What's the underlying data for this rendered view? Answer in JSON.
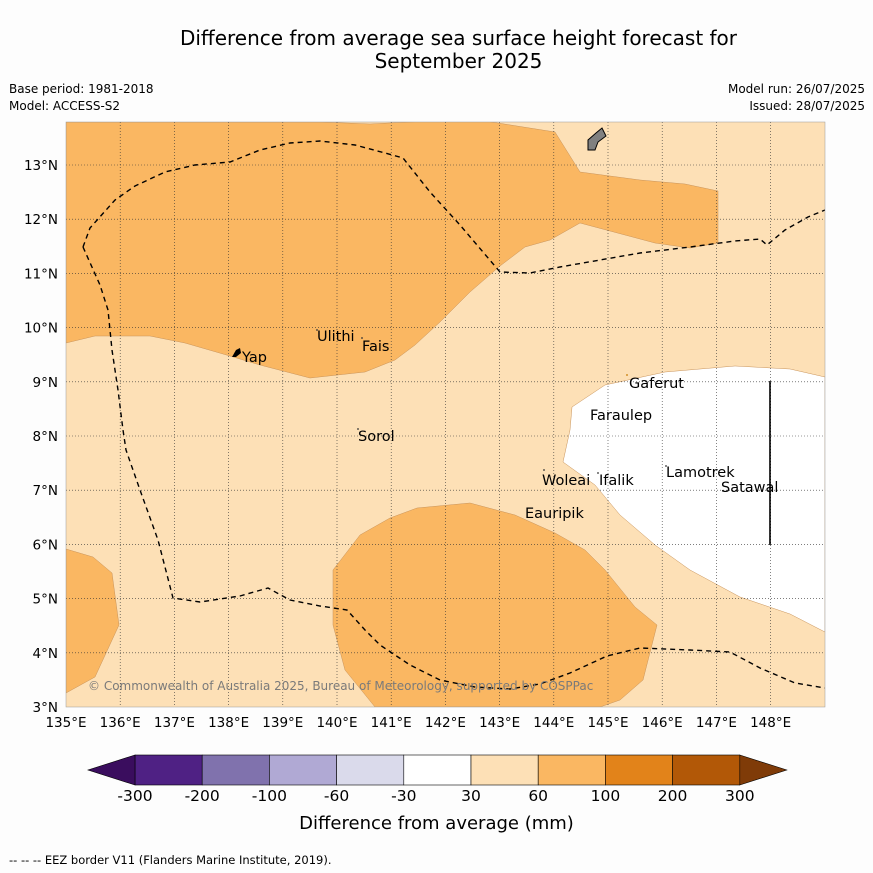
{
  "title_line1": "Difference from average sea surface height forecast for",
  "title_line2": "September 2025",
  "meta": {
    "base_period": "Base period: 1981-2018",
    "model": "Model: ACCESS-S2",
    "model_run": "Model run: 26/07/2025",
    "issued": "Issued: 28/07/2025"
  },
  "lon_ticks": [
    "135°E",
    "136°E",
    "137°E",
    "138°E",
    "139°E",
    "140°E",
    "141°E",
    "142°E",
    "143°E",
    "144°E",
    "145°E",
    "146°E",
    "147°E",
    "148°E"
  ],
  "lat_ticks": [
    "13°N",
    "12°N",
    "11°N",
    "10°N",
    "9°N",
    "8°N",
    "7°N",
    "6°N",
    "5°N",
    "4°N",
    "3°N"
  ],
  "places": {
    "ulithi": "Ulithi",
    "fais": "Fais",
    "yap": "Yap",
    "gaferut": "Gaferut",
    "faraulep": "Faraulep",
    "sorol": "Sorol",
    "woleai": "Woleai",
    "ifalik": "Ifalik",
    "lamotrek": "Lamotrek",
    "satawal": "Satawal",
    "eauripik": "Eauripik"
  },
  "copyright": "© Commonwealth of Australia 2025, Bureau of Meteorology, supported by COSPPac",
  "colorbar": {
    "title": "Difference from average (mm)",
    "labels": [
      "-300",
      "-200",
      "-100",
      "-60",
      "-30",
      "30",
      "60",
      "100",
      "200",
      "300"
    ],
    "colors": [
      "#4f2184",
      "#8072ad",
      "#b0a9d4",
      "#dadaeb",
      "#ffffff",
      "#fde0b6",
      "#fab762",
      "#e2831a",
      "#b25807"
    ],
    "under_color": "#3a0d5e",
    "over_color": "#7f3b08"
  },
  "footer": "--  --  -- EEZ border V11 (Flanders Marine Institute, 2019)."
}
